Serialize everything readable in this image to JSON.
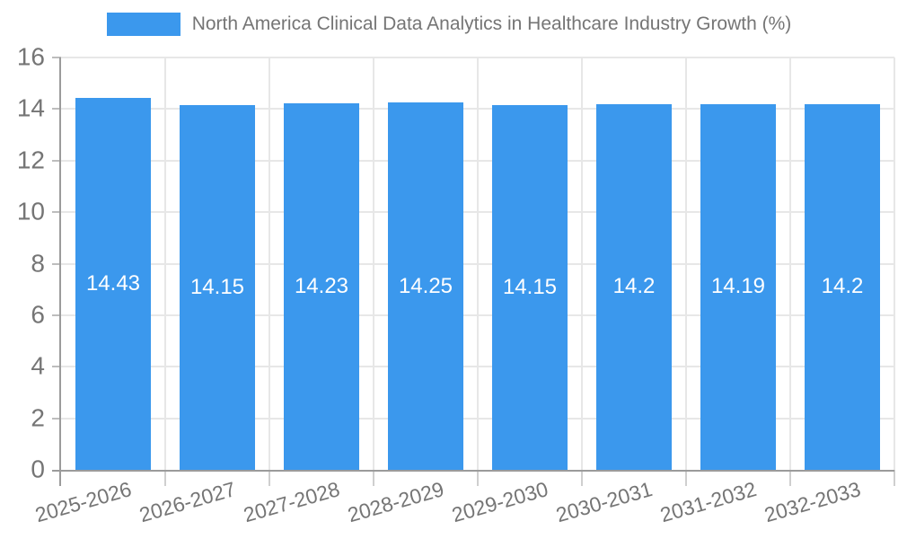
{
  "chart_data": {
    "type": "bar",
    "title": "North America Clinical Data Analytics in Healthcare Industry Growth (%)",
    "legend": {
      "label": "North America Clinical Data Analytics in Healthcare Industry Growth (%)",
      "position": "top"
    },
    "categories": [
      "2025-2026",
      "2026-2027",
      "2027-2028",
      "2028-2029",
      "2029-2030",
      "2030-2031",
      "2031-2032",
      "2032-2033"
    ],
    "values": [
      14.43,
      14.15,
      14.23,
      14.25,
      14.15,
      14.2,
      14.19,
      14.2
    ],
    "value_labels": [
      "14.43",
      "14.15",
      "14.23",
      "14.25",
      "14.15",
      "14.2",
      "14.19",
      "14.2"
    ],
    "xlabel": "",
    "ylabel": "",
    "ylim": [
      0,
      16
    ],
    "y_ticks": [
      0,
      2,
      4,
      6,
      8,
      10,
      12,
      14,
      16
    ],
    "grid": true,
    "value_labels_inside_bars": true,
    "x_label_rotation_deg": -16,
    "colors": {
      "bar": "#3b98ed",
      "grid": "#e7e7e7",
      "axis": "#9b9b9b",
      "tick": "#bdbdbd",
      "text": "#757575",
      "value_label": "#ffffff",
      "background": "#ffffff"
    }
  }
}
